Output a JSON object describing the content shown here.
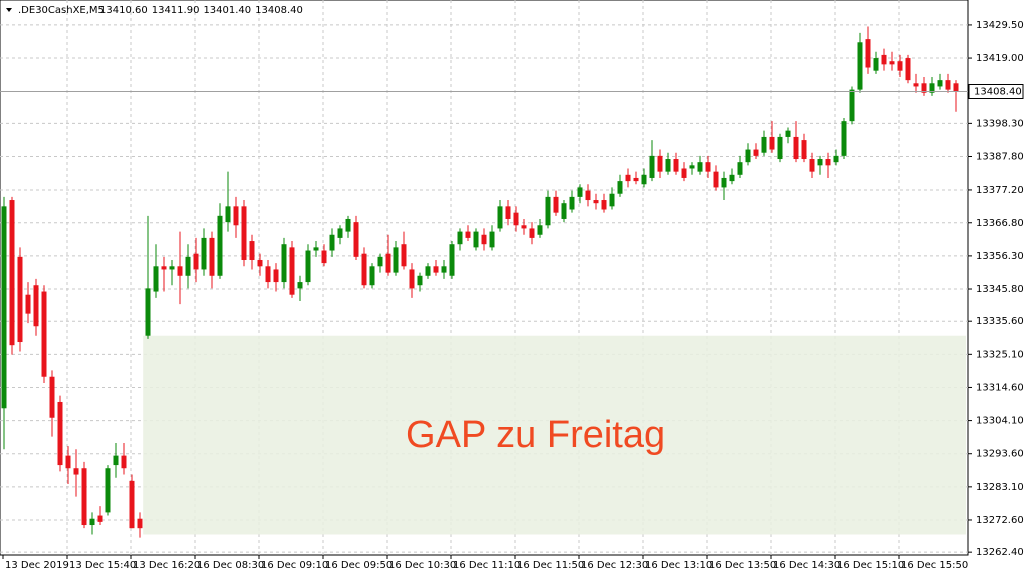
{
  "chart_data": {
    "type": "candlestick",
    "symbol": ".DE30CashXE,M5",
    "quote": [
      {
        "value": 13410.6,
        "label": "13410.60"
      },
      {
        "value": 13411.9,
        "label": "13411.90"
      },
      {
        "value": 13401.4,
        "label": "13401.40"
      },
      {
        "value": 13408.4,
        "label": "13408.40"
      }
    ],
    "up_color": "#0b8a0b",
    "down_color": "#e8141c",
    "ylim": [
      13261.5,
      13437.4
    ],
    "yticks": [
      {
        "value": 13429.5,
        "label": "13429.50"
      },
      {
        "value": 13419,
        "label": "13419.00"
      },
      {
        "value": 13398.3,
        "label": "13398.30"
      },
      {
        "value": 13387.8,
        "label": "13387.80"
      },
      {
        "value": 13377.2,
        "label": "13377.20"
      },
      {
        "value": 13366.8,
        "label": "13366.80"
      },
      {
        "value": 13356.3,
        "label": "13356.30"
      },
      {
        "value": 13345.8,
        "label": "13345.80"
      },
      {
        "value": 13335.6,
        "label": "13335.60"
      },
      {
        "value": 13325.1,
        "label": "13325.10"
      },
      {
        "value": 13314.6,
        "label": "13314.60"
      },
      {
        "value": 13304.1,
        "label": "13304.10"
      },
      {
        "value": 13293.6,
        "label": "13293.60"
      },
      {
        "value": 13283.1,
        "label": "13283.10"
      },
      {
        "value": 13272.6,
        "label": "13272.60"
      },
      {
        "value": 13262.4,
        "label": "13262.40"
      }
    ],
    "grid": true,
    "last_price": {
      "value": 13408.4,
      "label": "13408.40"
    },
    "gap_zone": {
      "label": "GAP zu Freitag",
      "from": 13268,
      "to": 13331
    },
    "categories": [
      "13 Dec 2019",
      null,
      null,
      null,
      null,
      null,
      null,
      null,
      "13 Dec 15:40",
      null,
      null,
      null,
      null,
      null,
      null,
      null,
      "13 Dec 16:20",
      null,
      null,
      null,
      null,
      null,
      null,
      null,
      "16 Dec 08:30",
      null,
      null,
      null,
      null,
      null,
      null,
      null,
      "16 Dec 09:10",
      null,
      null,
      null,
      null,
      null,
      null,
      null,
      "16 Dec 09:50",
      null,
      null,
      null,
      null,
      null,
      null,
      null,
      "16 Dec 10:30",
      null,
      null,
      null,
      null,
      null,
      null,
      null,
      "16 Dec 11:10",
      null,
      null,
      null,
      null,
      null,
      null,
      null,
      "16 Dec 11:50",
      null,
      null,
      null,
      null,
      null,
      null,
      null,
      "16 Dec 12:30",
      null,
      null,
      null,
      null,
      null,
      null,
      null,
      "16 Dec 13:10",
      null,
      null,
      null,
      null,
      null,
      null,
      null,
      "16 Dec 13:50",
      null,
      null,
      null,
      null,
      null,
      null,
      null,
      "16 Dec 14:30",
      null,
      null,
      null,
      null,
      null,
      null,
      null,
      "16 Dec 15:10",
      null,
      null,
      null,
      null,
      null,
      null,
      null,
      "16 Dec 15:50",
      null,
      null,
      null,
      null,
      null,
      null,
      null
    ],
    "ohlc": [
      [
        13308,
        13375,
        13295,
        13372
      ],
      [
        13374,
        13375,
        13325,
        13328
      ],
      [
        13356,
        13359,
        13326,
        13329
      ],
      [
        13344,
        13348,
        13335,
        13338
      ],
      [
        13347,
        13349,
        13331,
        13334
      ],
      [
        13345,
        13347,
        13316,
        13318
      ],
      [
        13318,
        13320,
        13299,
        13305
      ],
      [
        13310,
        13312,
        13288,
        13290
      ],
      [
        13293,
        13296,
        13284,
        13289
      ],
      [
        13289,
        13295,
        13280,
        13287
      ],
      [
        13289,
        13291,
        13270,
        13271
      ],
      [
        13271,
        13275,
        13268,
        13273
      ],
      [
        13274,
        13277,
        13271,
        13272
      ],
      [
        13275,
        13290,
        13274,
        13289
      ],
      [
        13290,
        13297,
        13286,
        13293
      ],
      [
        13293,
        13297,
        13287,
        13289
      ],
      [
        13285,
        13287,
        13270,
        13270
      ],
      [
        13273,
        13275,
        13267,
        13270
      ],
      [
        13331,
        13369,
        13330,
        13346
      ],
      [
        13345,
        13360,
        13343,
        13353
      ],
      [
        13353,
        13356,
        13345,
        13352
      ],
      [
        13352,
        13355,
        13347,
        13353
      ],
      [
        13353,
        13364,
        13341,
        13350
      ],
      [
        13350,
        13360,
        13346,
        13356
      ],
      [
        13357,
        13362,
        13348,
        13352
      ],
      [
        13352,
        13365,
        13350,
        13362
      ],
      [
        13362,
        13364,
        13346,
        13350
      ],
      [
        13350,
        13373,
        13349,
        13369
      ],
      [
        13367,
        13383,
        13364,
        13372
      ],
      [
        13372,
        13375,
        13362,
        13366
      ],
      [
        13372,
        13374,
        13353,
        13355
      ],
      [
        13361,
        13363,
        13352,
        13355
      ],
      [
        13355,
        13357,
        13350,
        13353
      ],
      [
        13353,
        13355,
        13346,
        13348
      ],
      [
        13352,
        13354,
        13345,
        13348
      ],
      [
        13348,
        13362,
        13346,
        13360
      ],
      [
        13359,
        13361,
        13343,
        13344
      ],
      [
        13346,
        13350,
        13342,
        13348
      ],
      [
        13348,
        13360,
        13347,
        13358
      ],
      [
        13358,
        13361,
        13356,
        13359
      ],
      [
        13358,
        13360,
        13353,
        13354
      ],
      [
        13358,
        13365,
        13356,
        13363
      ],
      [
        13362,
        13366,
        13360,
        13365
      ],
      [
        13364,
        13369,
        13362,
        13368
      ],
      [
        13367,
        13369,
        13355,
        13356
      ],
      [
        13357,
        13359,
        13346,
        13347
      ],
      [
        13347,
        13354,
        13346,
        13353
      ],
      [
        13353,
        13357,
        13351,
        13356
      ],
      [
        13357,
        13363,
        13350,
        13351
      ],
      [
        13351,
        13361,
        13350,
        13359
      ],
      [
        13360,
        13364,
        13352,
        13353
      ],
      [
        13352,
        13354,
        13343,
        13346
      ],
      [
        13347,
        13351,
        13345,
        13350
      ],
      [
        13350,
        13354,
        13349,
        13353
      ],
      [
        13353,
        13355,
        13350,
        13351
      ],
      [
        13351,
        13355,
        13349,
        13353
      ],
      [
        13350,
        13361,
        13349,
        13360
      ],
      [
        13360,
        13365,
        13358,
        13364
      ],
      [
        13364,
        13366,
        13361,
        13362
      ],
      [
        13359,
        13365,
        13358,
        13364
      ],
      [
        13363,
        13365,
        13358,
        13360
      ],
      [
        13359,
        13366,
        13358,
        13364
      ],
      [
        13365,
        13374,
        13364,
        13372
      ],
      [
        13372,
        13374,
        13366,
        13368
      ],
      [
        13370,
        13372,
        13364,
        13366
      ],
      [
        13366,
        13368,
        13363,
        13365
      ],
      [
        13365,
        13367,
        13360,
        13362
      ],
      [
        13363,
        13368,
        13362,
        13366
      ],
      [
        13366,
        13377,
        13365,
        13375
      ],
      [
        13375,
        13377,
        13369,
        13370
      ],
      [
        13368,
        13374,
        13367,
        13373
      ],
      [
        13371,
        13377,
        13370,
        13375
      ],
      [
        13375,
        13379,
        13373,
        13378
      ],
      [
        13377,
        13379,
        13372,
        13374
      ],
      [
        13374,
        13376,
        13371,
        13373
      ],
      [
        13374,
        13376,
        13370,
        13371
      ],
      [
        13372,
        13378,
        13371,
        13376
      ],
      [
        13376,
        13382,
        13375,
        13380
      ],
      [
        13382,
        13384,
        13378,
        13380
      ],
      [
        13381,
        13383,
        13379,
        13380
      ],
      [
        13379,
        13384,
        13378,
        13382
      ],
      [
        13381,
        13393,
        13380,
        13388
      ],
      [
        13388,
        13390,
        13381,
        13383
      ],
      [
        13383,
        13389,
        13382,
        13387
      ],
      [
        13387,
        13389,
        13382,
        13383
      ],
      [
        13384,
        13386,
        13380,
        13381
      ],
      [
        13384,
        13386,
        13382,
        13385
      ],
      [
        13383,
        13388,
        13382,
        13386
      ],
      [
        13386,
        13388,
        13381,
        13383
      ],
      [
        13383,
        13385,
        13377,
        13378
      ],
      [
        13378,
        13383,
        13374,
        13381
      ],
      [
        13380,
        13384,
        13379,
        13382
      ],
      [
        13382,
        13388,
        13381,
        13386
      ],
      [
        13386,
        13392,
        13385,
        13390
      ],
      [
        13390,
        13392,
        13387,
        13388
      ],
      [
        13389,
        13396,
        13388,
        13394
      ],
      [
        13394,
        13399,
        13389,
        13390
      ],
      [
        13387,
        13395,
        13386,
        13394
      ],
      [
        13394,
        13397,
        13392,
        13396
      ],
      [
        13394,
        13399,
        13386,
        13387
      ],
      [
        13393,
        13395,
        13386,
        13387
      ],
      [
        13387,
        13389,
        13381,
        13383
      ],
      [
        13385,
        13388,
        13382,
        13387
      ],
      [
        13387,
        13389,
        13381,
        13385
      ],
      [
        13386,
        13390,
        13385,
        13388
      ],
      [
        13388,
        13400,
        13387,
        13399
      ],
      [
        13399,
        13410,
        13398,
        13409
      ],
      [
        13409,
        13427,
        13408,
        13424
      ],
      [
        13425,
        13429,
        13414,
        13416
      ],
      [
        13415,
        13421,
        13414,
        13419
      ],
      [
        13420,
        13422,
        13415,
        13417
      ],
      [
        13418,
        13421,
        13415,
        13417
      ],
      [
        13418,
        13420,
        13413,
        13415
      ],
      [
        13419,
        13420,
        13411,
        13412
      ],
      [
        13411,
        13414,
        13408,
        13410
      ],
      [
        13411,
        13413,
        13407,
        13408
      ],
      [
        13408,
        13413,
        13407,
        13411
      ],
      [
        13410,
        13414,
        13409,
        13412
      ],
      [
        13412,
        13414,
        13408,
        13409
      ],
      [
        13411,
        13412,
        13402,
        13408.4
      ]
    ]
  }
}
